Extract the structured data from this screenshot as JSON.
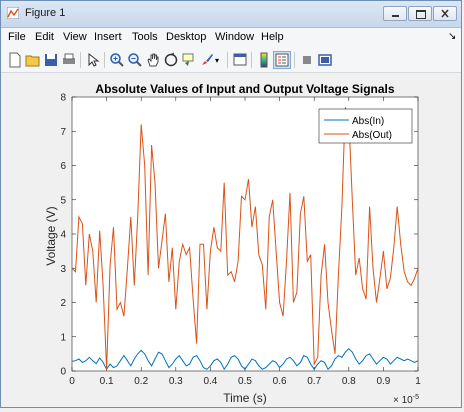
{
  "window": {
    "title": "Figure 1"
  },
  "menu": [
    "File",
    "Edit",
    "View",
    "Insert",
    "Tools",
    "Desktop",
    "Window",
    "Help"
  ],
  "toolbar_icons": [
    "new-figure-icon",
    "open-file-icon",
    "save-icon",
    "print-icon",
    "pointer-icon",
    "zoom-in-icon",
    "zoom-out-icon",
    "pan-icon",
    "rotate-3d-icon",
    "data-cursor-icon",
    "brush-icon",
    "link-plot-icon",
    "insert-colorbar-icon",
    "insert-legend-icon",
    "hide-plot-tools-icon",
    "show-plot-tools-icon"
  ],
  "chart_data": {
    "type": "line",
    "title": "Absolute Values of Input and Output Voltage Signals",
    "xlabel": "Time (s)",
    "ylabel": "Voltage (V)",
    "x_exponent": "× 10",
    "x_exponent_power": "-5",
    "xlim": [
      0,
      1
    ],
    "ylim": [
      0,
      8
    ],
    "xticks": [
      "0",
      "0.1",
      "0.2",
      "0.3",
      "0.4",
      "0.5",
      "0.6",
      "0.7",
      "0.8",
      "0.9",
      "1"
    ],
    "yticks": [
      "0",
      "1",
      "2",
      "3",
      "4",
      "5",
      "6",
      "7",
      "8"
    ],
    "legend_position": "top-right",
    "series": [
      {
        "name": "Abs(In)",
        "color": "#0072bd",
        "x": [
          0,
          0.01,
          0.02,
          0.03,
          0.04,
          0.05,
          0.06,
          0.07,
          0.08,
          0.09,
          0.1,
          0.11,
          0.12,
          0.13,
          0.14,
          0.15,
          0.16,
          0.17,
          0.18,
          0.19,
          0.2,
          0.21,
          0.22,
          0.23,
          0.24,
          0.25,
          0.26,
          0.27,
          0.28,
          0.29,
          0.3,
          0.31,
          0.32,
          0.33,
          0.34,
          0.35,
          0.36,
          0.37,
          0.38,
          0.39,
          0.4,
          0.41,
          0.42,
          0.43,
          0.44,
          0.45,
          0.46,
          0.47,
          0.48,
          0.49,
          0.5,
          0.51,
          0.52,
          0.53,
          0.54,
          0.55,
          0.56,
          0.57,
          0.58,
          0.59,
          0.6,
          0.61,
          0.62,
          0.63,
          0.64,
          0.65,
          0.66,
          0.67,
          0.68,
          0.69,
          0.7,
          0.71,
          0.72,
          0.73,
          0.74,
          0.75,
          0.76,
          0.77,
          0.78,
          0.79,
          0.8,
          0.81,
          0.82,
          0.83,
          0.84,
          0.85,
          0.86,
          0.87,
          0.88,
          0.89,
          0.9,
          0.91,
          0.92,
          0.93,
          0.94,
          0.95,
          0.96,
          0.97,
          0.98,
          0.99,
          1
        ],
        "values": [
          0.28,
          0.3,
          0.35,
          0.25,
          0.3,
          0.4,
          0.3,
          0.22,
          0.38,
          0.25,
          0.05,
          0.2,
          0.1,
          0.15,
          0.3,
          0.45,
          0.3,
          0.15,
          0.35,
          0.5,
          0.6,
          0.5,
          0.3,
          0.15,
          0.35,
          0.55,
          0.5,
          0.3,
          0.1,
          0.2,
          0.35,
          0.45,
          0.3,
          0.15,
          0.2,
          0.4,
          0.45,
          0.3,
          0.1,
          0.05,
          0.15,
          0.3,
          0.35,
          0.25,
          0.05,
          0.2,
          0.4,
          0.45,
          0.35,
          0.15,
          0.05,
          0.2,
          0.35,
          0.3,
          0.15,
          0.05,
          0.1,
          0.2,
          0.3,
          0.25,
          0.1,
          0.2,
          0.35,
          0.4,
          0.3,
          0.15,
          0.25,
          0.45,
          0.4,
          0.2,
          0.05,
          0.2,
          0.3,
          0.25,
          0.05,
          0.15,
          0.35,
          0.45,
          0.4,
          0.55,
          0.65,
          0.55,
          0.35,
          0.2,
          0.3,
          0.45,
          0.5,
          0.35,
          0.2,
          0.3,
          0.4,
          0.35,
          0.2,
          0.3,
          0.4,
          0.35,
          0.3,
          0.35,
          0.3,
          0.25,
          0.3
        ]
      },
      {
        "name": "Abs(Out)",
        "color": "#d95319",
        "x": [
          0,
          0.01,
          0.02,
          0.03,
          0.04,
          0.05,
          0.06,
          0.07,
          0.08,
          0.09,
          0.1,
          0.11,
          0.12,
          0.13,
          0.14,
          0.15,
          0.16,
          0.17,
          0.18,
          0.19,
          0.2,
          0.21,
          0.22,
          0.23,
          0.24,
          0.25,
          0.26,
          0.27,
          0.28,
          0.29,
          0.3,
          0.31,
          0.32,
          0.33,
          0.34,
          0.35,
          0.36,
          0.37,
          0.38,
          0.39,
          0.4,
          0.41,
          0.42,
          0.43,
          0.44,
          0.45,
          0.46,
          0.47,
          0.48,
          0.49,
          0.5,
          0.51,
          0.52,
          0.53,
          0.54,
          0.55,
          0.56,
          0.57,
          0.58,
          0.59,
          0.6,
          0.61,
          0.62,
          0.63,
          0.64,
          0.65,
          0.66,
          0.67,
          0.68,
          0.69,
          0.7,
          0.71,
          0.72,
          0.73,
          0.74,
          0.75,
          0.76,
          0.77,
          0.78,
          0.79,
          0.8,
          0.81,
          0.82,
          0.83,
          0.84,
          0.85,
          0.86,
          0.87,
          0.88,
          0.89,
          0.9,
          0.91,
          0.92,
          0.93,
          0.94,
          0.95,
          0.96,
          0.97,
          0.98,
          0.99,
          1
        ],
        "values": [
          3.0,
          2.9,
          4.5,
          4.3,
          2.5,
          4.0,
          3.5,
          2.0,
          4.1,
          2.5,
          0.05,
          3.1,
          4.2,
          1.8,
          2.0,
          1.6,
          3.0,
          4.5,
          2.5,
          4.5,
          7.2,
          6.0,
          2.8,
          6.6,
          5.5,
          3.0,
          3.8,
          4.6,
          2.6,
          3.6,
          1.8,
          3.2,
          3.7,
          3.4,
          3.6,
          2.1,
          0.8,
          3.7,
          3.7,
          1.8,
          3.5,
          4.2,
          3.6,
          3.5,
          5.5,
          2.8,
          2.9,
          2.6,
          3.2,
          5.1,
          5.0,
          5.6,
          4.2,
          4.8,
          3.4,
          3.1,
          1.8,
          4.5,
          5.0,
          3.5,
          2.0,
          1.6,
          3.2,
          5.2,
          2.0,
          2.3,
          4.6,
          5.1,
          3.2,
          3.4,
          0.2,
          0.4,
          2.8,
          3.7,
          2.0,
          1.2,
          0.5,
          2.8,
          4.8,
          7.7,
          7.4,
          5.0,
          2.8,
          3.3,
          2.4,
          2.1,
          4.8,
          3.0,
          2.0,
          2.7,
          3.5,
          2.4,
          2.7,
          3.6,
          4.8,
          3.7,
          2.9,
          2.6,
          2.5,
          2.7,
          3.0
        ]
      }
    ]
  }
}
